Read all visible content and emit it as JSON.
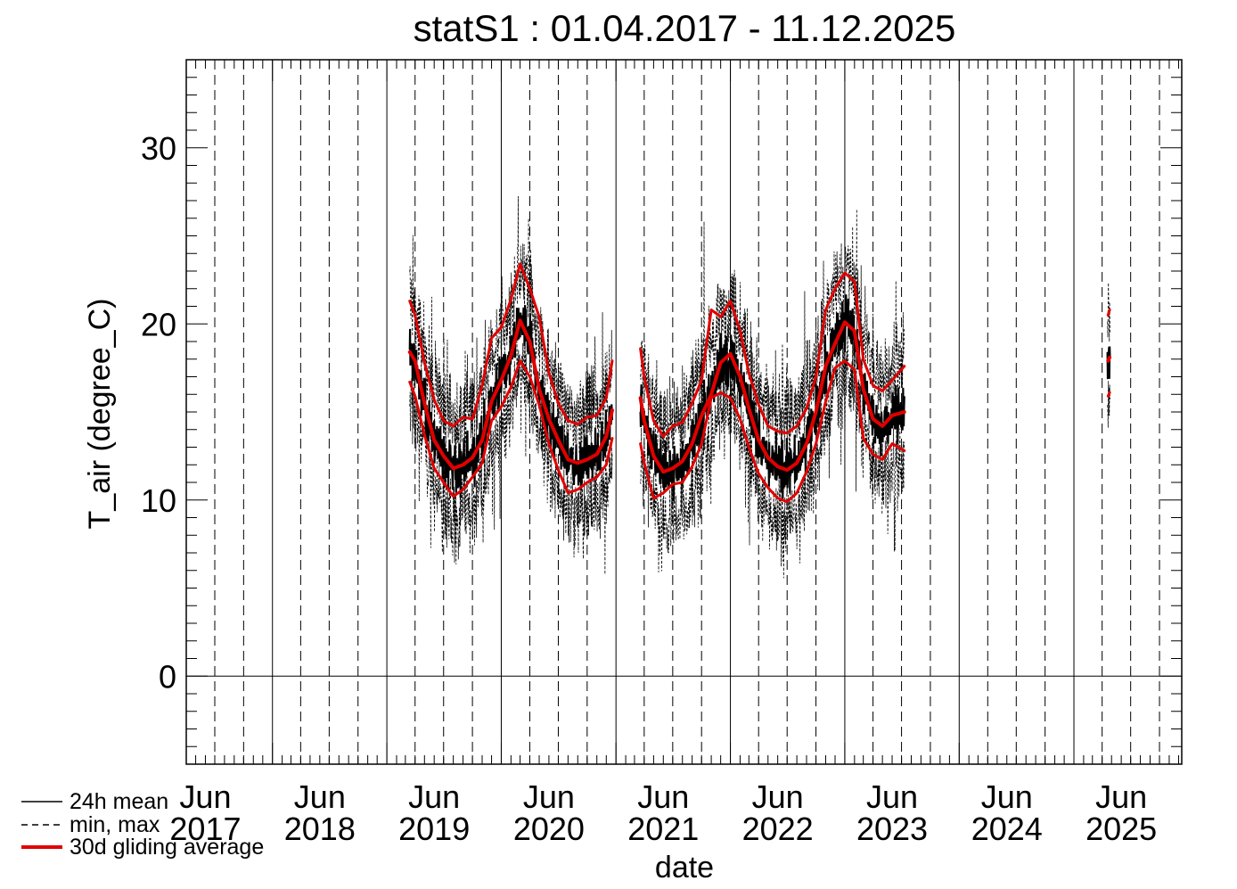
{
  "chart_data": {
    "type": "line",
    "title": "statS1 : 01.04.2017 - 11.12.2025",
    "xlabel": "date",
    "ylabel": "T_air (degree_C)",
    "xlim": [
      "2017-04-01",
      "2025-12-11"
    ],
    "ylim": [
      -5,
      35
    ],
    "y_ticks": [
      0,
      10,
      20,
      30
    ],
    "x_tick_labels": [
      {
        "month": "Jun",
        "year": "2017",
        "date": "2017-06-01"
      },
      {
        "month": "Jun",
        "year": "2018",
        "date": "2018-06-01"
      },
      {
        "month": "Jun",
        "year": "2019",
        "date": "2019-06-01"
      },
      {
        "month": "Jun",
        "year": "2020",
        "date": "2020-06-01"
      },
      {
        "month": "Jun",
        "year": "2021",
        "date": "2021-06-01"
      },
      {
        "month": "Jun",
        "year": "2022",
        "date": "2022-06-01"
      },
      {
        "month": "Jun",
        "year": "2023",
        "date": "2023-06-01"
      },
      {
        "month": "Jun",
        "year": "2024",
        "date": "2024-06-01"
      },
      {
        "month": "Jun",
        "year": "2025",
        "date": "2025-06-01"
      }
    ],
    "year_boundaries": [
      "2018-01-01",
      "2019-01-01",
      "2020-01-01",
      "2021-01-01",
      "2022-01-01",
      "2023-01-01",
      "2024-01-01",
      "2025-01-01"
    ],
    "quarter_gridlines": [
      "2017-04-01",
      "2017-07-01",
      "2017-10-01",
      "2018-04-01",
      "2018-07-01",
      "2018-10-01",
      "2019-04-01",
      "2019-07-01",
      "2019-10-01",
      "2020-04-01",
      "2020-07-01",
      "2020-10-01",
      "2021-04-01",
      "2021-07-01",
      "2021-10-01",
      "2022-04-01",
      "2022-07-01",
      "2022-10-01",
      "2023-04-01",
      "2023-07-01",
      "2023-10-01",
      "2024-04-01",
      "2024-07-01",
      "2024-10-01",
      "2025-04-01",
      "2025-07-01",
      "2025-10-01"
    ],
    "zero_line": 0,
    "legend": {
      "placement": "bottom-left",
      "entries": [
        {
          "label": "24h mean",
          "style": "solid",
          "color": "#000000"
        },
        {
          "label": "min, max",
          "style": "dashed",
          "color": "#000000"
        },
        {
          "label": "30d gliding average",
          "style": "solid-thick",
          "color": "#e00000"
        }
      ]
    },
    "series": [
      {
        "name": "30d gliding average",
        "color": "#e00000",
        "segments": [
          {
            "x": [
              "2019-03-15",
              "2019-04-01",
              "2019-05-01",
              "2019-06-01",
              "2019-07-01",
              "2019-08-01",
              "2019-09-01",
              "2019-10-01",
              "2019-11-01",
              "2019-12-01",
              "2020-01-01",
              "2020-02-01",
              "2020-03-01",
              "2020-04-01",
              "2020-05-01",
              "2020-06-01",
              "2020-07-01",
              "2020-08-01",
              "2020-09-01",
              "2020-10-01",
              "2020-11-01",
              "2020-12-01",
              "2020-12-20"
            ],
            "y": [
              18.4,
              17.9,
              15.5,
              13.4,
              12.5,
              11.8,
              12.0,
              12.4,
              13.4,
              15.6,
              16.8,
              18.2,
              20.2,
              19.0,
              16.3,
              14.6,
              13.4,
              12.3,
              12.1,
              12.3,
              12.6,
              13.6,
              15.1
            ]
          },
          {
            "x": [
              "2021-03-20",
              "2021-04-01",
              "2021-05-01",
              "2021-06-01",
              "2021-07-01",
              "2021-08-01",
              "2021-09-01",
              "2021-10-01",
              "2021-11-01",
              "2021-12-01",
              "2022-01-01",
              "2022-02-01",
              "2022-03-01",
              "2022-04-01",
              "2022-05-01",
              "2022-06-01",
              "2022-07-01",
              "2022-08-01",
              "2022-09-01",
              "2022-10-01",
              "2022-11-01",
              "2022-12-01",
              "2023-01-01",
              "2023-02-01",
              "2023-03-01",
              "2023-04-01",
              "2023-05-01",
              "2023-06-01",
              "2023-07-10"
            ],
            "y": [
              15.8,
              14.5,
              12.5,
              11.6,
              11.8,
              12.2,
              13.2,
              14.8,
              16.0,
              17.8,
              18.3,
              17.0,
              15.2,
              13.4,
              12.4,
              11.9,
              11.7,
              12.1,
              13.2,
              15.0,
              17.6,
              18.9,
              20.1,
              19.6,
              16.3,
              14.6,
              14.2,
              14.8,
              15.0
            ]
          },
          {
            "x": [
              "2025-04-20",
              "2025-04-25"
            ],
            "y": [
              17.9,
              18.1
            ]
          }
        ]
      },
      {
        "name": "30d gliding average (max)",
        "color": "#e00000",
        "segments": [
          {
            "x": [
              "2019-03-15",
              "2019-04-01",
              "2019-05-01",
              "2019-06-01",
              "2019-07-01",
              "2019-08-01",
              "2019-09-01",
              "2019-10-01",
              "2019-11-01",
              "2019-12-01",
              "2020-01-01",
              "2020-02-01",
              "2020-03-01",
              "2020-04-01",
              "2020-05-01",
              "2020-06-01",
              "2020-07-01",
              "2020-08-01",
              "2020-09-01",
              "2020-10-01",
              "2020-11-01",
              "2020-12-01",
              "2020-12-20"
            ],
            "y": [
              21.3,
              20.5,
              17.8,
              15.7,
              14.5,
              14.2,
              14.7,
              14.6,
              16.5,
              19.2,
              19.8,
              21.4,
              23.4,
              22.0,
              20.4,
              17.2,
              15.5,
              14.5,
              14.3,
              14.7,
              14.8,
              15.8,
              17.9
            ]
          },
          {
            "x": [
              "2021-03-20",
              "2021-04-01",
              "2021-05-01",
              "2021-06-01",
              "2021-07-01",
              "2021-08-01",
              "2021-09-01",
              "2021-10-01",
              "2021-11-01",
              "2021-12-01",
              "2022-01-01",
              "2022-02-01",
              "2022-03-01",
              "2022-04-01",
              "2022-05-01",
              "2022-06-01",
              "2022-07-01",
              "2022-08-01",
              "2022-09-01",
              "2022-10-01",
              "2022-11-01",
              "2022-12-01",
              "2023-01-01",
              "2023-02-01",
              "2023-03-01",
              "2023-04-01",
              "2023-05-01",
              "2023-06-01",
              "2023-07-10"
            ],
            "y": [
              18.6,
              17.0,
              14.5,
              13.6,
              14.2,
              14.4,
              15.5,
              16.8,
              20.8,
              20.4,
              21.3,
              19.6,
              17.2,
              15.4,
              14.2,
              13.9,
              13.8,
              14.2,
              15.2,
              17.0,
              20.8,
              22.0,
              22.9,
              22.4,
              18.0,
              16.5,
              16.2,
              16.8,
              17.6
            ]
          },
          {
            "x": [
              "2025-04-20",
              "2025-04-25"
            ],
            "y": [
              20.5,
              20.8
            ]
          }
        ]
      },
      {
        "name": "30d gliding average (min)",
        "color": "#e00000",
        "segments": [
          {
            "x": [
              "2019-03-15",
              "2019-04-01",
              "2019-05-01",
              "2019-06-01",
              "2019-07-01",
              "2019-08-01",
              "2019-09-01",
              "2019-10-01",
              "2019-11-01",
              "2019-12-01",
              "2020-01-01",
              "2020-02-01",
              "2020-03-01",
              "2020-04-01",
              "2020-05-01",
              "2020-06-01",
              "2020-07-01",
              "2020-08-01",
              "2020-09-01",
              "2020-10-01",
              "2020-11-01",
              "2020-12-01",
              "2020-12-20"
            ],
            "y": [
              16.7,
              15.9,
              13.7,
              11.8,
              11.0,
              10.2,
              10.6,
              11.3,
              12.1,
              14.5,
              15.3,
              16.4,
              17.9,
              17.0,
              15.4,
              13.2,
              11.7,
              10.4,
              10.6,
              11.0,
              11.3,
              12.0,
              13.5
            ]
          },
          {
            "x": [
              "2021-03-20",
              "2021-04-01",
              "2021-05-01",
              "2021-06-01",
              "2021-07-01",
              "2021-08-01",
              "2021-09-01",
              "2021-10-01",
              "2021-11-01",
              "2021-12-01",
              "2022-01-01",
              "2022-02-01",
              "2022-03-01",
              "2022-04-01",
              "2022-05-01",
              "2022-06-01",
              "2022-07-01",
              "2022-08-01",
              "2022-09-01",
              "2022-10-01",
              "2022-11-01",
              "2022-12-01",
              "2023-01-01",
              "2023-02-01",
              "2023-03-01",
              "2023-04-01",
              "2023-05-01",
              "2023-06-01",
              "2023-07-10"
            ],
            "y": [
              13.2,
              12.1,
              10.1,
              10.4,
              10.9,
              11.0,
              11.9,
              13.2,
              15.8,
              16.1,
              15.8,
              14.6,
              13.0,
              11.5,
              10.7,
              10.1,
              9.9,
              10.4,
              11.6,
              13.2,
              15.6,
              17.5,
              17.9,
              17.4,
              13.5,
              12.6,
              12.3,
              13.2,
              12.8
            ]
          },
          {
            "x": [
              "2025-04-20",
              "2025-04-25"
            ],
            "y": [
              15.9,
              16.1
            ]
          }
        ]
      }
    ],
    "daily_bands": [
      {
        "start": "2019-03-15",
        "end": "2020-12-20",
        "trend": "30d gliding average"
      },
      {
        "start": "2021-03-20",
        "end": "2023-07-10",
        "trend": "30d gliding average"
      },
      {
        "start": "2025-04-18",
        "end": "2025-04-26",
        "trend": "30d gliding average"
      }
    ]
  }
}
